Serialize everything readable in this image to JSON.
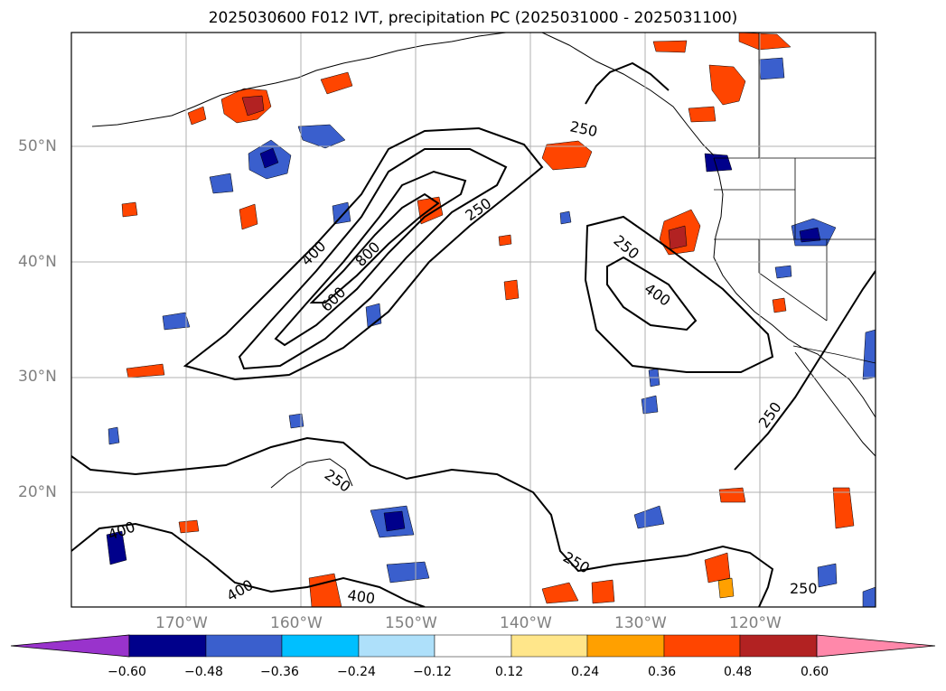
{
  "title": "2025030600 F012 IVT, precipitation PC (2025031000 - 2025031100)",
  "lat_labels": [
    "50°N",
    "40°N",
    "30°N",
    "20°N"
  ],
  "lon_labels": [
    "170°W",
    "160°W",
    "150°W",
    "140°W",
    "130°W",
    "120°W"
  ],
  "contour_labels": [
    "250",
    "250",
    "250",
    "250",
    "250",
    "250",
    "250",
    "400",
    "400",
    "400",
    "400",
    "400",
    "600",
    "800"
  ],
  "colorbar": {
    "ticks": [
      "−0.60",
      "−0.48",
      "−0.36",
      "−0.24",
      "−0.12",
      "0.12",
      "0.24",
      "0.36",
      "0.48",
      "0.60"
    ],
    "colors": [
      "#9933cc",
      "#00008b",
      "#3a5fcd",
      "#00bfff",
      "#aee0fa",
      "#ffffff",
      "#ffe68a",
      "#ffa000",
      "#ff4500",
      "#b22222",
      "#ff88aa"
    ]
  },
  "colors": {
    "coast": "#000000",
    "contour": "#000000",
    "grid": "#b0b0b0",
    "axis_text": "#808080"
  }
}
